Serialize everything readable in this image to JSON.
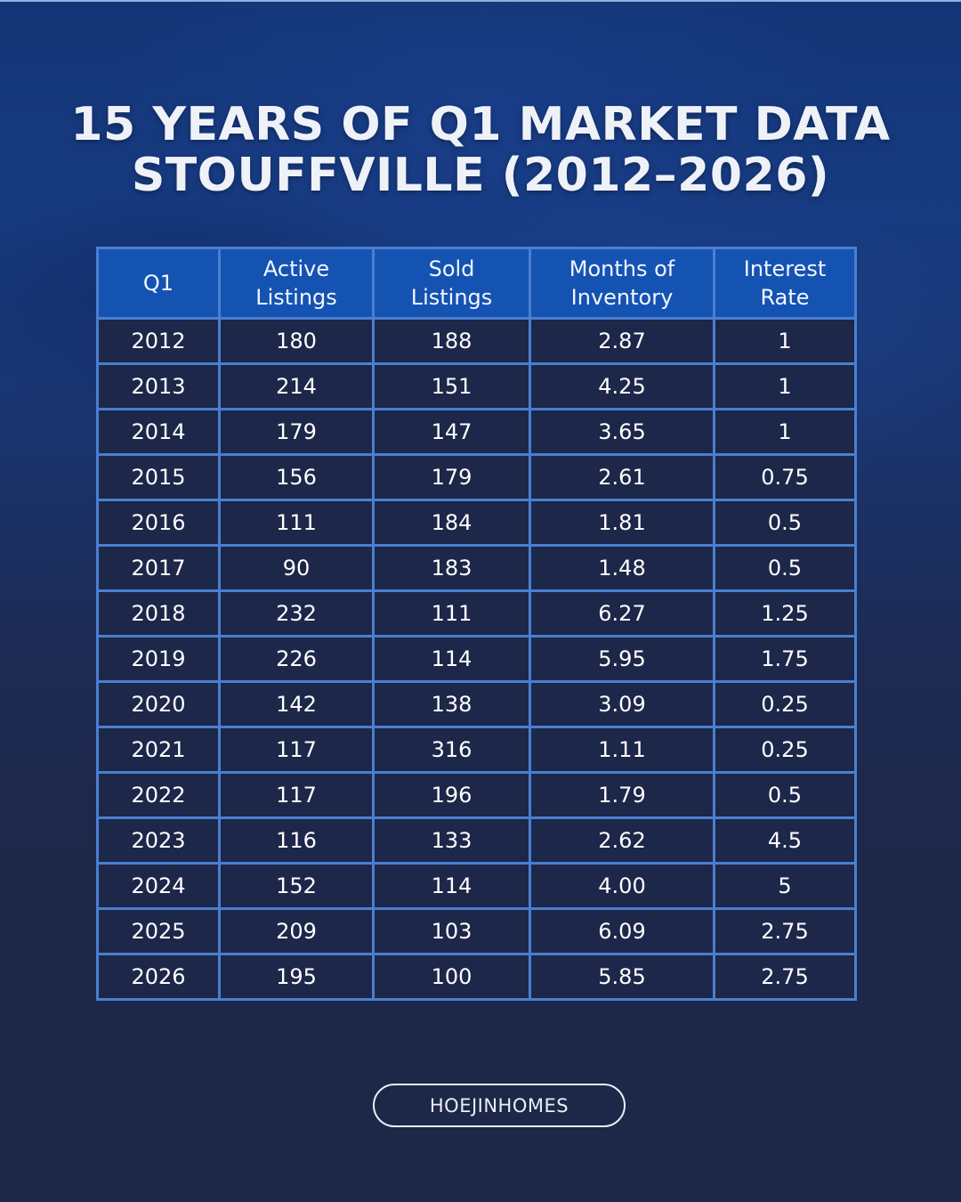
{
  "title": {
    "line1": "15 YEARS OF Q1 MARKET DATA",
    "line2": "STOUFFVILLE (2012–2026)"
  },
  "table": {
    "headers": [
      "Q1",
      "Active Listings",
      "Sold Listings",
      "Months of Inventory",
      "Interest Rate"
    ],
    "rows": [
      [
        "2012",
        "180",
        "188",
        "2.87",
        "1"
      ],
      [
        "2013",
        "214",
        "151",
        "4.25",
        "1"
      ],
      [
        "2014",
        "179",
        "147",
        "3.65",
        "1"
      ],
      [
        "2015",
        "156",
        "179",
        "2.61",
        "0.75"
      ],
      [
        "2016",
        "111",
        "184",
        "1.81",
        "0.5"
      ],
      [
        "2017",
        "90",
        "183",
        "1.48",
        "0.5"
      ],
      [
        "2018",
        "232",
        "111",
        "6.27",
        "1.25"
      ],
      [
        "2019",
        "226",
        "114",
        "5.95",
        "1.75"
      ],
      [
        "2020",
        "142",
        "138",
        "3.09",
        "0.25"
      ],
      [
        "2021",
        "117",
        "316",
        "1.11",
        "0.25"
      ],
      [
        "2022",
        "117",
        "196",
        "1.79",
        "0.5"
      ],
      [
        "2023",
        "116",
        "133",
        "2.62",
        "4.5"
      ],
      [
        "2024",
        "152",
        "114",
        "4.00",
        "5"
      ],
      [
        "2025",
        "209",
        "103",
        "6.09",
        "2.75"
      ],
      [
        "2026",
        "195",
        "100",
        "5.85",
        "2.75"
      ]
    ]
  },
  "footer": {
    "brand": "HOEJINHOMES"
  },
  "colors": {
    "header_bg": "#1553b3",
    "cell_bg": "#1d2749",
    "border": "#4a7fd0",
    "background_top": "#143677",
    "background_bottom": "#1d2747",
    "text": "#ffffff"
  },
  "chart_data": {
    "type": "table",
    "title": "15 YEARS OF Q1 MARKET DATA STOUFFVILLE (2012–2026)",
    "columns": [
      "Q1",
      "Active Listings",
      "Sold Listings",
      "Months of Inventory",
      "Interest Rate"
    ],
    "categories": [
      "2012",
      "2013",
      "2014",
      "2015",
      "2016",
      "2017",
      "2018",
      "2019",
      "2020",
      "2021",
      "2022",
      "2023",
      "2024",
      "2025",
      "2026"
    ],
    "series": [
      {
        "name": "Active Listings",
        "values": [
          180,
          214,
          179,
          156,
          111,
          90,
          232,
          226,
          142,
          117,
          117,
          116,
          152,
          209,
          195
        ]
      },
      {
        "name": "Sold Listings",
        "values": [
          188,
          151,
          147,
          179,
          184,
          183,
          111,
          114,
          138,
          316,
          196,
          133,
          114,
          103,
          100
        ]
      },
      {
        "name": "Months of Inventory",
        "values": [
          2.87,
          4.25,
          3.65,
          2.61,
          1.81,
          1.48,
          6.27,
          5.95,
          3.09,
          1.11,
          1.79,
          2.62,
          4.0,
          6.09,
          5.85
        ]
      },
      {
        "name": "Interest Rate",
        "values": [
          1,
          1,
          1,
          0.75,
          0.5,
          0.5,
          1.25,
          1.75,
          0.25,
          0.25,
          0.5,
          4.5,
          5,
          2.75,
          2.75
        ]
      }
    ]
  }
}
